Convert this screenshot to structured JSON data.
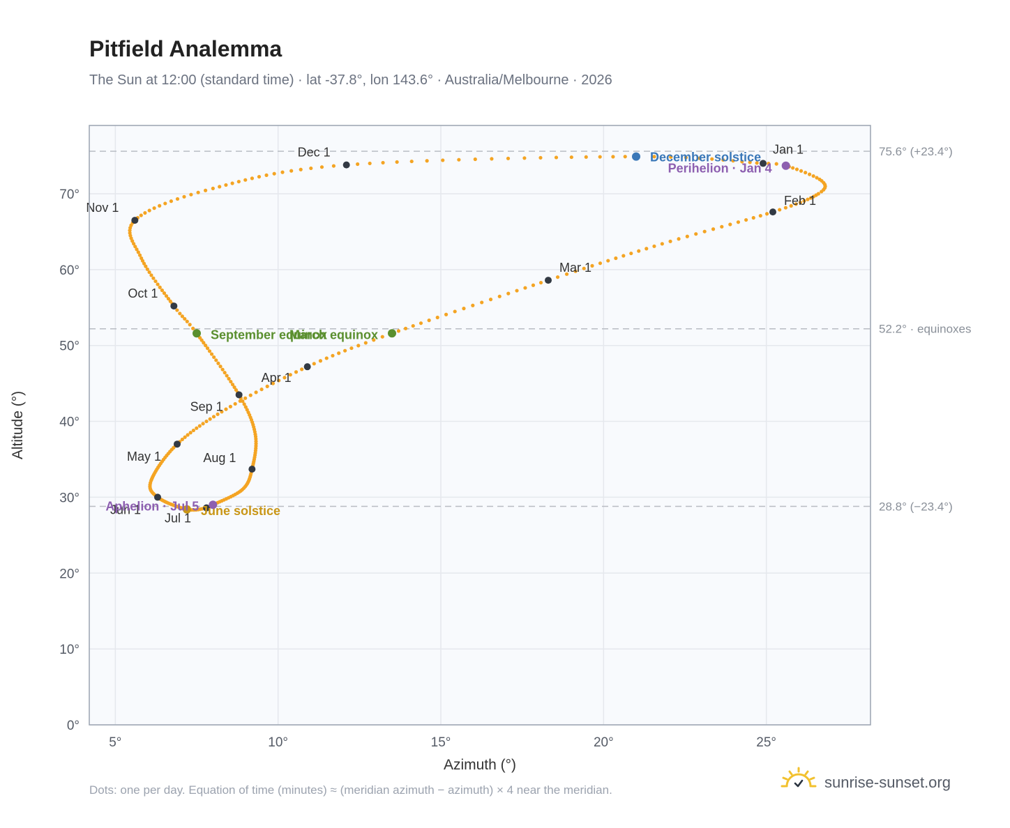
{
  "title": "Pitfield Analemma",
  "subtitle": "The Sun at 12:00 (standard time) · lat -37.8°, lon 143.6° · Australia/Melbourne · 2026",
  "footnote": "Dots: one per day. Equation of time (minutes) ≈ (meridian azimuth − azimuth) × 4 near the meridian.",
  "brand": {
    "name": "sunrise-sunset.org",
    "icon": "sun-logo-icon"
  },
  "chart_data": {
    "type": "scatter",
    "xlabel": "Azimuth (°)",
    "ylabel": "Altitude (°)",
    "xlim": [
      4.2,
      28.2
    ],
    "ylim": [
      0,
      79
    ],
    "x_ticks": [
      5,
      10,
      15,
      20,
      25
    ],
    "x_tick_labels": [
      "5°",
      "10°",
      "15°",
      "20°",
      "25°"
    ],
    "y_ticks": [
      0,
      10,
      20,
      30,
      40,
      50,
      60,
      70
    ],
    "y_tick_labels": [
      "0°",
      "10°",
      "20°",
      "30°",
      "40°",
      "50°",
      "60°",
      "70°"
    ],
    "grid": true,
    "colors": {
      "path": "#f4a423",
      "month": "#333a44",
      "equinox": "#5a8f2e",
      "december": "#3b78b8",
      "june": "#c99616",
      "apsis": "#8d5fb0",
      "plot_bg": "#f8fafd",
      "grid": "#e5e8ed",
      "ref": "#b8bcc3"
    },
    "reference_lines": [
      {
        "y": 75.6,
        "label": "75.6° (+23.4°)"
      },
      {
        "y": 52.2,
        "label": "52.2° · equinoxes"
      },
      {
        "y": 28.8,
        "label": "28.8° (−23.4°)"
      }
    ],
    "months": [
      {
        "label": "Jan 1",
        "x": 24.9,
        "y": 74.0
      },
      {
        "label": "Feb 1",
        "x": 25.2,
        "y": 67.6
      },
      {
        "label": "Mar 1",
        "x": 18.3,
        "y": 58.6
      },
      {
        "label": "Apr 1",
        "x": 10.9,
        "y": 47.2
      },
      {
        "label": "May 1",
        "x": 6.9,
        "y": 37.0
      },
      {
        "label": "Jun 1",
        "x": 6.3,
        "y": 30.0
      },
      {
        "label": "Jul 1",
        "x": 7.8,
        "y": 28.6
      },
      {
        "label": "Aug 1",
        "x": 9.2,
        "y": 33.7
      },
      {
        "label": "Sep 1",
        "x": 8.8,
        "y": 43.5
      },
      {
        "label": "Oct 1",
        "x": 6.8,
        "y": 55.2
      },
      {
        "label": "Nov 1",
        "x": 5.6,
        "y": 66.5
      },
      {
        "label": "Dec 1",
        "x": 12.1,
        "y": 73.8
      }
    ],
    "events": [
      {
        "label": "December solstice",
        "x": 21.0,
        "y": 74.9,
        "color": "#3b78b8"
      },
      {
        "label": "Perihelion · Jan 4",
        "x": 25.6,
        "y": 73.7,
        "color": "#8d5fb0"
      },
      {
        "label": "March equinox",
        "x": 13.5,
        "y": 51.6,
        "color": "#5a8f2e"
      },
      {
        "label": "September equinox",
        "x": 7.5,
        "y": 51.6,
        "color": "#5a8f2e"
      },
      {
        "label": "June solstice",
        "x": 7.2,
        "y": 28.4,
        "color": "#c99616"
      },
      {
        "label": "Aphelion · Jul 5",
        "x": 8.0,
        "y": 29.0,
        "color": "#8d5fb0"
      }
    ],
    "path_anchors": [
      {
        "day": 0,
        "x": 24.9,
        "y": 74.0
      },
      {
        "day": 3,
        "x": 25.6,
        "y": 73.7
      },
      {
        "day": 13,
        "x": 26.7,
        "y": 71.7
      },
      {
        "day": 20,
        "x": 26.6,
        "y": 70.0
      },
      {
        "day": 31,
        "x": 25.2,
        "y": 67.6
      },
      {
        "day": 45,
        "x": 21.8,
        "y": 63.4
      },
      {
        "day": 59,
        "x": 18.3,
        "y": 58.6
      },
      {
        "day": 78,
        "x": 13.5,
        "y": 51.6
      },
      {
        "day": 90,
        "x": 10.9,
        "y": 47.2
      },
      {
        "day": 105,
        "x": 8.4,
        "y": 41.6
      },
      {
        "day": 120,
        "x": 6.9,
        "y": 37.0
      },
      {
        "day": 140,
        "x": 6.1,
        "y": 32.2
      },
      {
        "day": 151,
        "x": 6.3,
        "y": 30.0
      },
      {
        "day": 171,
        "x": 7.2,
        "y": 28.4
      },
      {
        "day": 181,
        "x": 7.8,
        "y": 28.6
      },
      {
        "day": 185,
        "x": 8.0,
        "y": 29.0
      },
      {
        "day": 200,
        "x": 8.9,
        "y": 31.0
      },
      {
        "day": 212,
        "x": 9.2,
        "y": 33.7
      },
      {
        "day": 228,
        "x": 9.3,
        "y": 38.3
      },
      {
        "day": 243,
        "x": 8.8,
        "y": 43.5
      },
      {
        "day": 265,
        "x": 7.5,
        "y": 51.6
      },
      {
        "day": 273,
        "x": 6.8,
        "y": 55.2
      },
      {
        "day": 290,
        "x": 5.8,
        "y": 61.5
      },
      {
        "day": 304,
        "x": 5.6,
        "y": 66.5
      },
      {
        "day": 318,
        "x": 8.0,
        "y": 70.7
      },
      {
        "day": 334,
        "x": 12.1,
        "y": 73.8
      },
      {
        "day": 354,
        "x": 21.0,
        "y": 74.9
      },
      {
        "day": 365,
        "x": 24.9,
        "y": 74.0
      }
    ]
  }
}
